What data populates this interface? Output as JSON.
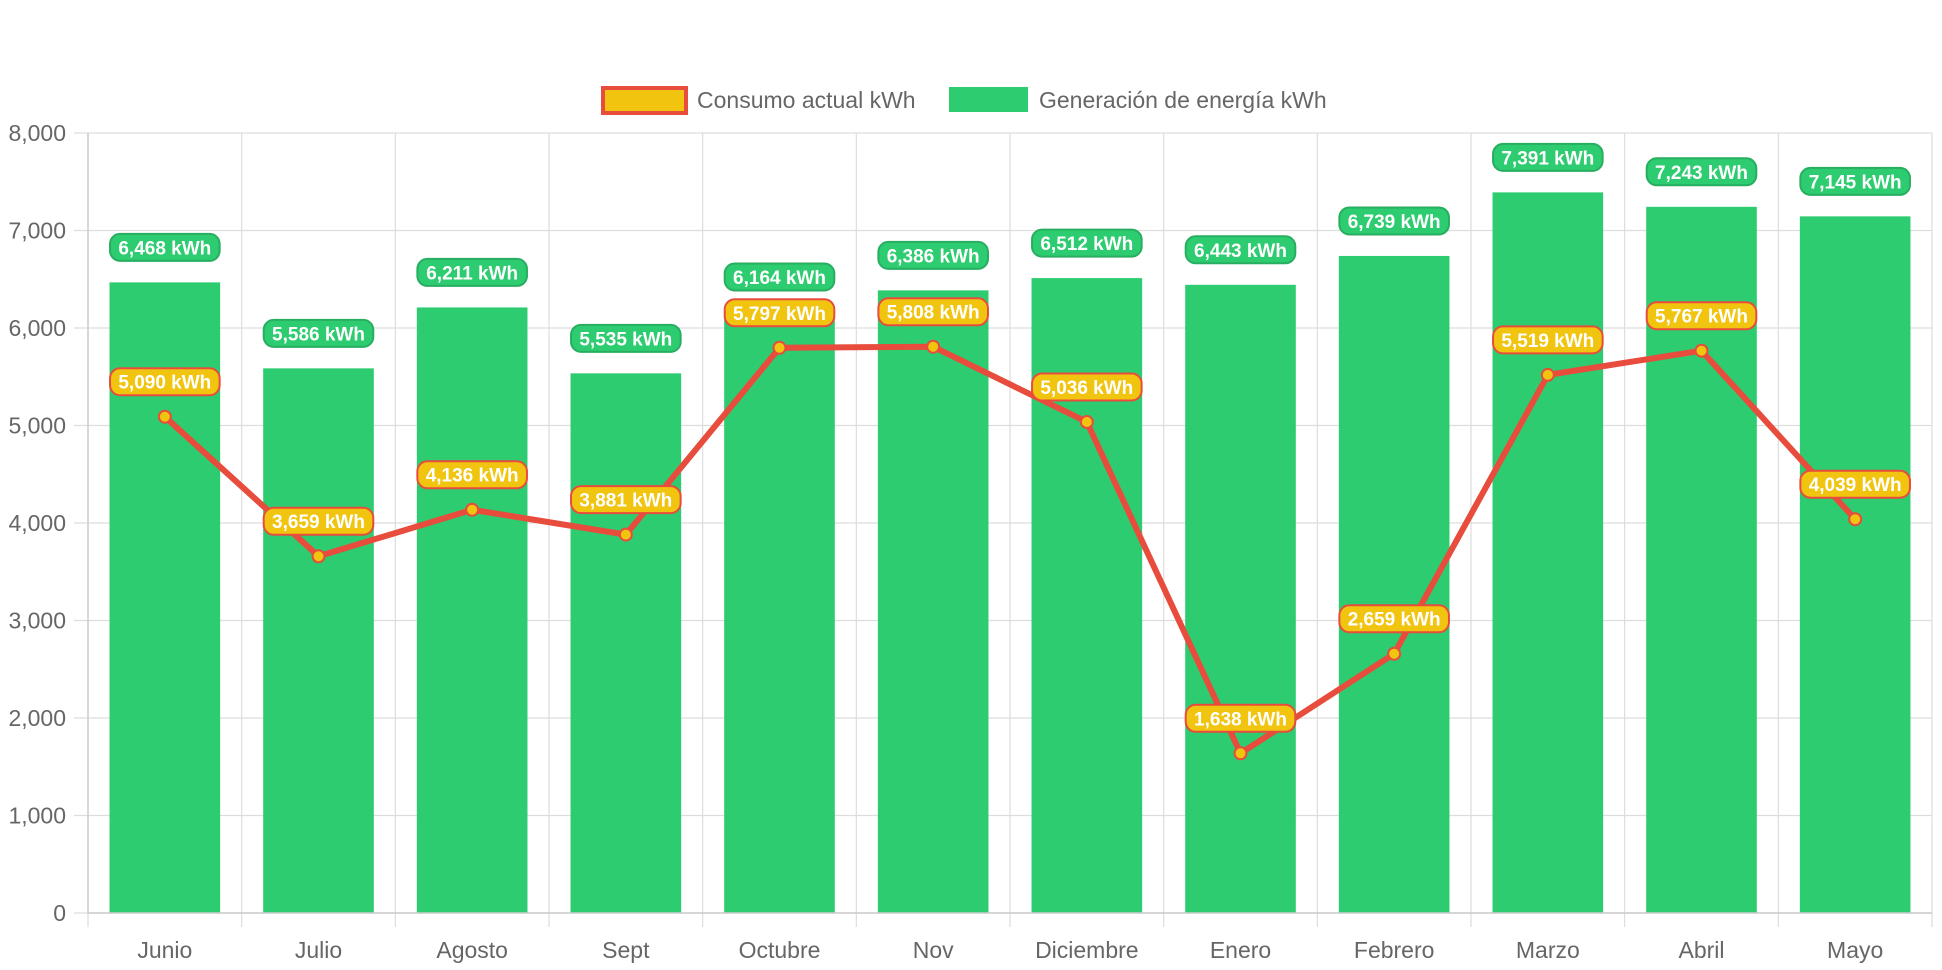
{
  "chart_data": {
    "type": "bar",
    "categories": [
      "Junio",
      "Julio",
      "Agosto",
      "Sept",
      "Octubre",
      "Nov",
      "Diciembre",
      "Enero",
      "Febrero",
      "Marzo",
      "Abril",
      "Mayo"
    ],
    "series": [
      {
        "name": "Generación de energía kWh",
        "type": "bar",
        "values": [
          6468,
          5586,
          6211,
          5535,
          6164,
          6386,
          6512,
          6443,
          6739,
          7391,
          7243,
          7145
        ],
        "labels": [
          "6,468 kWh",
          "5,586 kWh",
          "6,211 kWh",
          "5,535 kWh",
          "6,164 kWh",
          "6,386 kWh",
          "6,512 kWh",
          "6,443 kWh",
          "6,739 kWh",
          "7,391 kWh",
          "7,243 kWh",
          "7,145 kWh"
        ],
        "color": "#2ecc71"
      },
      {
        "name": "Consumo actual kWh",
        "type": "line",
        "values": [
          5090,
          3659,
          4136,
          3881,
          5797,
          5808,
          5036,
          1638,
          2659,
          5519,
          5767,
          4039
        ],
        "labels": [
          "5,090 kWh",
          "3,659 kWh",
          "4,136 kWh",
          "3,881 kWh",
          "5,797 kWh",
          "5,808 kWh",
          "5,036 kWh",
          "1,638 kWh",
          "2,659 kWh",
          "5,519 kWh",
          "5,767 kWh",
          "4,039 kWh"
        ],
        "color": "#e74c3c",
        "fill_color": "#f1c40f"
      }
    ],
    "legend": [
      "Consumo actual kWh",
      "Generación de energía kWh"
    ],
    "legend_position": "top",
    "ylim": [
      0,
      8000
    ],
    "yticks": [
      "0",
      "1,000",
      "2,000",
      "3,000",
      "4,000",
      "5,000",
      "6,000",
      "7,000",
      "8,000"
    ],
    "grid": true
  }
}
